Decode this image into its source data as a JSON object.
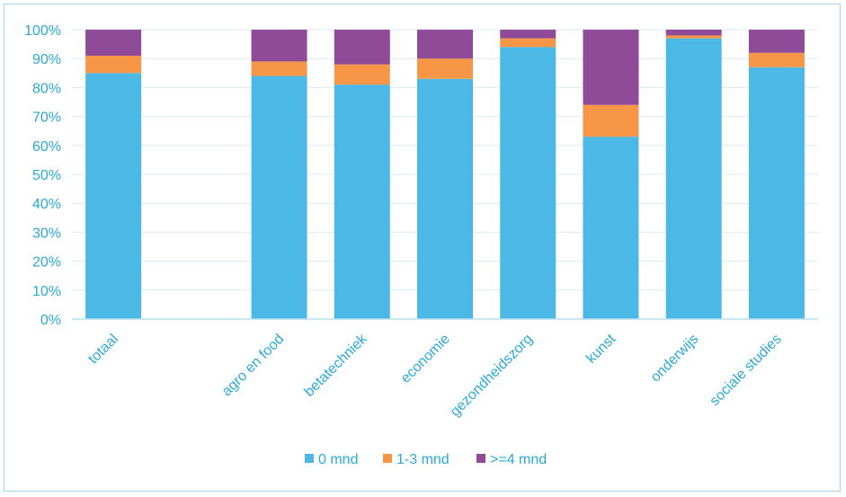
{
  "chart_data": {
    "type": "bar",
    "stacked": true,
    "percent_stacked": true,
    "title": "",
    "xlabel": "",
    "ylabel": "",
    "ylim": [
      0,
      100
    ],
    "y_ticks": [
      "0%",
      "10%",
      "20%",
      "30%",
      "40%",
      "50%",
      "60%",
      "70%",
      "80%",
      "90%",
      "100%"
    ],
    "grid": true,
    "legend_position": "bottom",
    "categories": [
      "totaal",
      "",
      "agro en food",
      "betatechniek",
      "economie",
      "gezondheidszorg",
      "kunst",
      "onderwijs",
      "sociale studies"
    ],
    "series": [
      {
        "name": "0 mnd",
        "color": "#4cb8e6",
        "values": [
          85,
          null,
          84,
          81,
          83,
          94,
          63,
          97,
          87
        ]
      },
      {
        "name": "1-3 mnd",
        "color": "#f79646",
        "values": [
          6,
          null,
          5,
          7,
          7,
          3,
          11,
          1,
          5
        ]
      },
      {
        "name": ">=4 mnd",
        "color": "#8f4b97",
        "values": [
          9,
          null,
          11,
          12,
          10,
          3,
          26,
          2,
          8
        ]
      }
    ]
  }
}
